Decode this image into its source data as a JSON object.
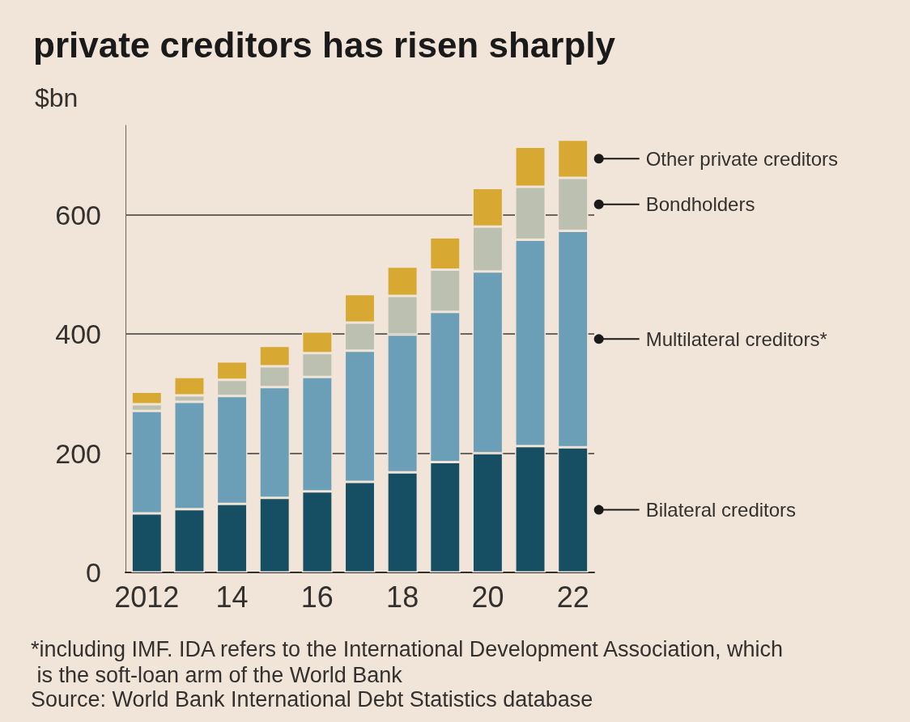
{
  "chart_data": {
    "type": "bar",
    "title": "private creditors has risen sharply",
    "ylabel": "$bn",
    "categories": [
      "2012",
      null,
      "14",
      null,
      "16",
      null,
      "18",
      null,
      "20",
      null,
      "22"
    ],
    "stacked": true,
    "legend": "right",
    "grid": "y",
    "ylim": [
      0,
      750
    ],
    "yticks": [
      0,
      200,
      400,
      600
    ],
    "series": [
      {
        "name": "Bilateral creditors",
        "color": "#164f63",
        "values": [
          99,
          106,
          115,
          125,
          136,
          152,
          168,
          185,
          200,
          212,
          210
        ]
      },
      {
        "name": "Multilateral creditors*",
        "color": "#6b9fb7",
        "values": [
          172,
          180,
          181,
          186,
          192,
          220,
          231,
          252,
          305,
          346,
          363
        ]
      },
      {
        "name": "Bondholders",
        "color": "#bcc0b0",
        "values": [
          11,
          11,
          27,
          35,
          40,
          47,
          65,
          71,
          75,
          89,
          89
        ]
      },
      {
        "name": "Other private creditors",
        "color": "#d7a932",
        "values": [
          21,
          31,
          31,
          34,
          36,
          48,
          49,
          54,
          65,
          67,
          64
        ]
      }
    ],
    "annotations": [
      "*including IMF. IDA refers to the International Development Association, which is the soft-loan arm of the World Bank",
      "Source: World Bank International Debt Statistics database"
    ]
  }
}
